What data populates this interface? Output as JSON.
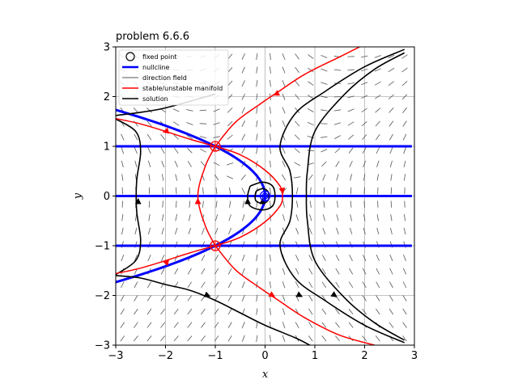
{
  "chart_data": {
    "type": "line",
    "title": "problem 6.6.6",
    "xlabel": "x",
    "ylabel": "y",
    "xlim": [
      -3,
      3
    ],
    "ylim": [
      -3,
      3
    ],
    "xticks": [
      -3,
      -2,
      -1,
      0,
      1,
      2,
      3
    ],
    "yticks": [
      -3,
      -2,
      -1,
      0,
      1,
      2,
      3
    ],
    "grid": true,
    "legend_position": "top-left",
    "legend": [
      {
        "label": "fixed point",
        "kind": "marker",
        "color": "#000000"
      },
      {
        "label": "nullcline",
        "kind": "line",
        "color": "#0000ff"
      },
      {
        "label": "direction field",
        "kind": "line",
        "color": "#555555"
      },
      {
        "label": "stable/unstable manifold",
        "kind": "line",
        "color": "#ff0000"
      },
      {
        "label": "solution",
        "kind": "line",
        "color": "#000000"
      }
    ],
    "fixed_points": [
      {
        "x": 0,
        "y": 0,
        "color": "#0000ff"
      },
      {
        "x": -1,
        "y": 1,
        "color": "#ff0000"
      },
      {
        "x": -1,
        "y": -1,
        "color": "#ff0000"
      }
    ],
    "nullclines": {
      "color": "#0000ff",
      "horizontal_y": [
        -1,
        0,
        1
      ],
      "parabola": "x = -y^2",
      "parabola_y_range": [
        -1.75,
        1.75
      ]
    },
    "manifolds": {
      "color": "#ff0000",
      "curves": [
        [
          [
            -3,
            1.56
          ],
          [
            -2.5,
            1.45
          ],
          [
            -2,
            1.3
          ],
          [
            -1.5,
            1.14
          ],
          [
            -1,
            1
          ]
        ],
        [
          [
            -3,
            -1.56
          ],
          [
            -2.5,
            -1.45
          ],
          [
            -2,
            -1.3
          ],
          [
            -1.5,
            -1.14
          ],
          [
            -1,
            -1
          ]
        ],
        [
          [
            -1,
            1
          ],
          [
            -1.2,
            0.6
          ],
          [
            -1.35,
            0
          ],
          [
            -1.2,
            -0.6
          ],
          [
            -1,
            -1
          ]
        ],
        [
          [
            -1,
            1
          ],
          [
            -0.5,
            0.83
          ],
          [
            0,
            0.52
          ],
          [
            0.3,
            0.2
          ],
          [
            0.35,
            0
          ],
          [
            0.3,
            -0.2
          ],
          [
            0,
            -0.52
          ],
          [
            -0.5,
            -0.83
          ],
          [
            -1,
            -1
          ]
        ],
        [
          [
            -1,
            1
          ],
          [
            -0.6,
            1.48
          ],
          [
            -0.1,
            1.85
          ],
          [
            0.3,
            2.12
          ],
          [
            0.8,
            2.45
          ],
          [
            1.5,
            2.8
          ],
          [
            1.9,
            3.0
          ]
        ],
        [
          [
            -1,
            -1
          ],
          [
            -0.6,
            -1.48
          ],
          [
            -0.1,
            -1.85
          ],
          [
            0.3,
            -2.12
          ],
          [
            0.8,
            -2.45
          ],
          [
            1.5,
            -2.8
          ],
          [
            2.2,
            -3.0
          ]
        ]
      ],
      "arrows": [
        {
          "x": -2.0,
          "y": 1.3,
          "dir": [
            -1,
            -0.25
          ]
        },
        {
          "x": -2.0,
          "y": -1.33,
          "dir": [
            -1,
            0.25
          ]
        },
        {
          "x": -1.35,
          "y": -0.1,
          "dir": [
            0,
            1
          ]
        },
        {
          "x": 0.35,
          "y": 0.1,
          "dir": [
            0.2,
            -1
          ]
        },
        {
          "x": 0.22,
          "y": 2.05,
          "dir": [
            -1,
            -0.5
          ]
        },
        {
          "x": 0.15,
          "y": -2.0,
          "dir": [
            1,
            -0.6
          ]
        }
      ]
    },
    "solutions": {
      "color": "#000000",
      "curves": [
        [
          [
            -3,
            1.55
          ],
          [
            -2.6,
            1.3
          ],
          [
            -2.5,
            0.9
          ],
          [
            -2.58,
            0.3
          ],
          [
            -2.58,
            -0.3
          ],
          [
            -2.5,
            -0.9
          ],
          [
            -2.6,
            -1.3
          ],
          [
            -3,
            -1.58
          ]
        ],
        [
          [
            -1.0,
            2.05
          ],
          [
            -1.6,
            1.88
          ],
          [
            -2.1,
            1.75
          ],
          [
            -2.6,
            1.67
          ],
          [
            -3,
            1.62
          ]
        ],
        [
          [
            -3,
            -1.6
          ],
          [
            -2.5,
            -1.65
          ],
          [
            -2.0,
            -1.78
          ],
          [
            -1.5,
            -1.9
          ],
          [
            -1.0,
            -2.1
          ],
          [
            -0.5,
            -2.35
          ],
          [
            0,
            -2.6
          ],
          [
            0.6,
            -2.85
          ],
          [
            0.9,
            -3.0
          ]
        ],
        [
          [
            2.8,
            2.95
          ],
          [
            2.0,
            2.6
          ],
          [
            1.2,
            2.1
          ],
          [
            0.6,
            1.65
          ],
          [
            0.3,
            1.0
          ],
          [
            0.5,
            0.5
          ],
          [
            0.55,
            0
          ],
          [
            0.5,
            -0.5
          ],
          [
            0.3,
            -1.0
          ],
          [
            0.6,
            -1.65
          ],
          [
            1.2,
            -2.1
          ],
          [
            2.0,
            -2.6
          ],
          [
            2.8,
            -2.95
          ]
        ],
        [
          [
            2.8,
            2.88
          ],
          [
            2.2,
            2.55
          ],
          [
            1.6,
            2.05
          ],
          [
            1.0,
            1.3
          ],
          [
            0.85,
            0.5
          ],
          [
            0.83,
            0
          ],
          [
            0.85,
            -0.5
          ],
          [
            1.0,
            -1.3
          ],
          [
            1.6,
            -2.05
          ],
          [
            2.2,
            -2.55
          ],
          [
            2.8,
            -2.9
          ]
        ],
        [
          [
            -0.3,
            0.2
          ],
          [
            -0.05,
            0.28
          ],
          [
            0.15,
            0.2
          ],
          [
            0.2,
            0
          ],
          [
            0.15,
            -0.2
          ],
          [
            -0.05,
            -0.28
          ],
          [
            -0.3,
            -0.2
          ],
          [
            -0.35,
            0
          ],
          [
            -0.3,
            0.2
          ]
        ],
        [
          [
            -0.18,
            0.1
          ],
          [
            -0.05,
            0.15
          ],
          [
            0.05,
            0.1
          ],
          [
            0.08,
            0
          ],
          [
            0.05,
            -0.1
          ],
          [
            -0.05,
            -0.15
          ],
          [
            -0.18,
            -0.1
          ],
          [
            -0.2,
            0
          ],
          [
            -0.18,
            0.1
          ]
        ]
      ],
      "arrows": [
        {
          "x": -2.55,
          "y": -0.1,
          "dir": [
            0,
            1
          ]
        },
        {
          "x": -0.35,
          "y": -0.1,
          "dir": [
            0,
            1
          ]
        },
        {
          "x": -0.05,
          "y": -0.1,
          "dir": [
            0,
            1
          ]
        },
        {
          "x": -1.15,
          "y": -2.0,
          "dir": [
            1,
            -0.4
          ]
        },
        {
          "x": 0.7,
          "y": -2.0,
          "dir": [
            1,
            -0.5
          ]
        },
        {
          "x": 1.4,
          "y": -2.0,
          "dir": [
            1,
            -0.7
          ]
        }
      ]
    },
    "direction_field": {
      "color": "#555555",
      "grid_step": 0.27,
      "equations": "dx/dt = x*y, dy/dt = x^2 - y  (approximate field for rendering)"
    }
  }
}
